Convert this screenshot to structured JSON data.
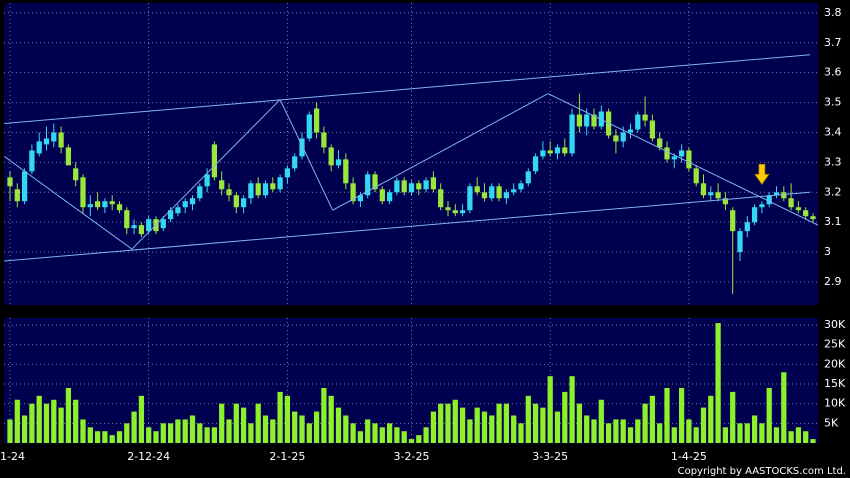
{
  "chart_data": {
    "type": "candlestick",
    "ohlc": [
      [
        3.25,
        3.27,
        3.17,
        3.22
      ],
      [
        3.21,
        3.23,
        3.15,
        3.17
      ],
      [
        3.17,
        3.28,
        3.16,
        3.27
      ],
      [
        3.27,
        3.36,
        3.26,
        3.34
      ],
      [
        3.33,
        3.4,
        3.32,
        3.37
      ],
      [
        3.36,
        3.42,
        3.34,
        3.38
      ],
      [
        3.37,
        3.43,
        3.35,
        3.4
      ],
      [
        3.4,
        3.42,
        3.33,
        3.35
      ],
      [
        3.35,
        3.36,
        3.29,
        3.29
      ],
      [
        3.28,
        3.3,
        3.22,
        3.24
      ],
      [
        3.25,
        3.26,
        3.13,
        3.15
      ],
      [
        3.15,
        3.19,
        3.12,
        3.16
      ],
      [
        3.17,
        3.2,
        3.14,
        3.15
      ],
      [
        3.15,
        3.18,
        3.13,
        3.17
      ],
      [
        3.17,
        3.19,
        3.14,
        3.16
      ],
      [
        3.16,
        3.17,
        3.13,
        3.14
      ],
      [
        3.14,
        3.15,
        3.06,
        3.08
      ],
      [
        3.08,
        3.11,
        3.06,
        3.09
      ],
      [
        3.09,
        3.1,
        3.05,
        3.06
      ],
      [
        3.07,
        3.12,
        3.06,
        3.11
      ],
      [
        3.11,
        3.12,
        3.06,
        3.07
      ],
      [
        3.08,
        3.12,
        3.07,
        3.11
      ],
      [
        3.11,
        3.15,
        3.1,
        3.14
      ],
      [
        3.13,
        3.16,
        3.12,
        3.15
      ],
      [
        3.15,
        3.18,
        3.13,
        3.17
      ],
      [
        3.16,
        3.19,
        3.14,
        3.18
      ],
      [
        3.18,
        3.23,
        3.17,
        3.22
      ],
      [
        3.22,
        3.28,
        3.2,
        3.26
      ],
      [
        3.36,
        3.37,
        3.24,
        3.25
      ],
      [
        3.24,
        3.27,
        3.19,
        3.21
      ],
      [
        3.21,
        3.23,
        3.17,
        3.19
      ],
      [
        3.19,
        3.2,
        3.13,
        3.15
      ],
      [
        3.15,
        3.19,
        3.13,
        3.18
      ],
      [
        3.18,
        3.24,
        3.16,
        3.23
      ],
      [
        3.23,
        3.25,
        3.18,
        3.19
      ],
      [
        3.19,
        3.24,
        3.18,
        3.23
      ],
      [
        3.23,
        3.25,
        3.2,
        3.21
      ],
      [
        3.21,
        3.26,
        3.2,
        3.25
      ],
      [
        3.25,
        3.29,
        3.23,
        3.28
      ],
      [
        3.28,
        3.33,
        3.27,
        3.32
      ],
      [
        3.32,
        3.4,
        3.31,
        3.38
      ],
      [
        3.38,
        3.47,
        3.37,
        3.46
      ],
      [
        3.48,
        3.5,
        3.38,
        3.4
      ],
      [
        3.4,
        3.42,
        3.33,
        3.35
      ],
      [
        3.35,
        3.36,
        3.27,
        3.29
      ],
      [
        3.29,
        3.34,
        3.28,
        3.31
      ],
      [
        3.31,
        3.33,
        3.21,
        3.23
      ],
      [
        3.23,
        3.25,
        3.16,
        3.17
      ],
      [
        3.17,
        3.2,
        3.15,
        3.19
      ],
      [
        3.19,
        3.27,
        3.18,
        3.26
      ],
      [
        3.26,
        3.27,
        3.2,
        3.21
      ],
      [
        3.21,
        3.22,
        3.16,
        3.17
      ],
      [
        3.17,
        3.21,
        3.16,
        3.2
      ],
      [
        3.2,
        3.25,
        3.19,
        3.24
      ],
      [
        3.24,
        3.25,
        3.19,
        3.2
      ],
      [
        3.2,
        3.24,
        3.19,
        3.23
      ],
      [
        3.23,
        3.24,
        3.19,
        3.21
      ],
      [
        3.21,
        3.25,
        3.2,
        3.24
      ],
      [
        3.25,
        3.27,
        3.2,
        3.21
      ],
      [
        3.21,
        3.23,
        3.14,
        3.15
      ],
      [
        3.15,
        3.17,
        3.12,
        3.14
      ],
      [
        3.14,
        3.16,
        3.12,
        3.13
      ],
      [
        3.13,
        3.16,
        3.12,
        3.14
      ],
      [
        3.14,
        3.23,
        3.13,
        3.22
      ],
      [
        3.22,
        3.25,
        3.19,
        3.2
      ],
      [
        3.2,
        3.23,
        3.17,
        3.18
      ],
      [
        3.18,
        3.23,
        3.17,
        3.22
      ],
      [
        3.22,
        3.23,
        3.17,
        3.18
      ],
      [
        3.18,
        3.21,
        3.16,
        3.2
      ],
      [
        3.2,
        3.23,
        3.19,
        3.21
      ],
      [
        3.21,
        3.24,
        3.2,
        3.23
      ],
      [
        3.23,
        3.28,
        3.22,
        3.27
      ],
      [
        3.27,
        3.33,
        3.26,
        3.32
      ],
      [
        3.32,
        3.37,
        3.31,
        3.34
      ],
      [
        3.34,
        3.37,
        3.32,
        3.33
      ],
      [
        3.33,
        3.36,
        3.31,
        3.35
      ],
      [
        3.35,
        3.38,
        3.32,
        3.33
      ],
      [
        3.33,
        3.48,
        3.32,
        3.46
      ],
      [
        3.46,
        3.53,
        3.4,
        3.42
      ],
      [
        3.42,
        3.48,
        3.39,
        3.46
      ],
      [
        3.46,
        3.48,
        3.41,
        3.42
      ],
      [
        3.42,
        3.49,
        3.41,
        3.47
      ],
      [
        3.47,
        3.48,
        3.38,
        3.39
      ],
      [
        3.39,
        3.41,
        3.33,
        3.37
      ],
      [
        3.37,
        3.42,
        3.35,
        3.4
      ],
      [
        3.4,
        3.43,
        3.38,
        3.41
      ],
      [
        3.41,
        3.47,
        3.4,
        3.46
      ],
      [
        3.46,
        3.52,
        3.42,
        3.44
      ],
      [
        3.44,
        3.46,
        3.37,
        3.38
      ],
      [
        3.38,
        3.4,
        3.34,
        3.35
      ],
      [
        3.35,
        3.37,
        3.3,
        3.31
      ],
      [
        3.31,
        3.33,
        3.28,
        3.32
      ],
      [
        3.32,
        3.36,
        3.3,
        3.34
      ],
      [
        3.34,
        3.35,
        3.27,
        3.28
      ],
      [
        3.28,
        3.29,
        3.22,
        3.23
      ],
      [
        3.23,
        3.26,
        3.18,
        3.19
      ],
      [
        3.19,
        3.22,
        3.17,
        3.2
      ],
      [
        3.2,
        3.23,
        3.17,
        3.18
      ],
      [
        3.18,
        3.2,
        3.14,
        3.16
      ],
      [
        3.14,
        3.15,
        2.86,
        3.07
      ],
      [
        3.0,
        3.08,
        2.97,
        3.07
      ],
      [
        3.07,
        3.12,
        3.05,
        3.1
      ],
      [
        3.1,
        3.16,
        3.09,
        3.15
      ],
      [
        3.15,
        3.17,
        3.13,
        3.16
      ],
      [
        3.16,
        3.2,
        3.15,
        3.19
      ],
      [
        3.19,
        3.22,
        3.18,
        3.2
      ],
      [
        3.2,
        3.22,
        3.17,
        3.18
      ],
      [
        3.18,
        3.23,
        3.14,
        3.15
      ],
      [
        3.15,
        3.17,
        3.13,
        3.14
      ],
      [
        3.14,
        3.15,
        3.11,
        3.12
      ],
      [
        3.12,
        3.13,
        3.1,
        3.11
      ]
    ],
    "volume": [
      6000,
      11000,
      7000,
      10000,
      12000,
      10000,
      11000,
      9000,
      14000,
      11000,
      6000,
      4000,
      3000,
      3000,
      2000,
      3000,
      5000,
      8000,
      12000,
      4000,
      3000,
      5000,
      5000,
      6000,
      6000,
      7000,
      5000,
      4000,
      4000,
      10000,
      6000,
      10000,
      9000,
      5000,
      10000,
      7000,
      6000,
      13000,
      12000,
      8000,
      7000,
      5000,
      8000,
      14000,
      12000,
      9000,
      7000,
      5000,
      3000,
      6000,
      5000,
      4000,
      5000,
      4000,
      3000,
      1000,
      2000,
      4000,
      8000,
      10000,
      10000,
      11000,
      9000,
      6000,
      9000,
      8000,
      7000,
      10000,
      10000,
      7000,
      5000,
      12000,
      10000,
      9000,
      17000,
      8000,
      13000,
      17000,
      10000,
      7000,
      6000,
      11000,
      5000,
      6000,
      6000,
      4000,
      6000,
      10000,
      12000,
      5000,
      14000,
      4000,
      14000,
      6000,
      4000,
      9000,
      12000,
      30500,
      4000,
      13000,
      5000,
      5000,
      7000,
      5000,
      14000,
      4000,
      18000,
      3000,
      4000,
      3000,
      1000
    ],
    "up_color": "#33d8f5",
    "down_color": "#9be63c",
    "volume_color": "#8cf02a",
    "ylim": [
      2.823,
      3.833
    ],
    "yticks": [
      2.9,
      3,
      3.1,
      3.2,
      3.3,
      3.4,
      3.5,
      3.6,
      3.7,
      3.8
    ],
    "volume_ylim": [
      0,
      31800
    ],
    "volume_ticks": [
      {
        "value": 5000,
        "label": "5K"
      },
      {
        "value": 10000,
        "label": "10K"
      },
      {
        "value": 15000,
        "label": "15K"
      },
      {
        "value": 20000,
        "label": "20K"
      },
      {
        "value": 25000,
        "label": "25K"
      },
      {
        "value": 30000,
        "label": "30K"
      }
    ],
    "xticks": [
      {
        "value": 0,
        "label": "1-24"
      },
      {
        "value": 19,
        "label": "2-12-24"
      },
      {
        "value": 38,
        "label": "2-1-25"
      },
      {
        "value": 55,
        "label": "3-2-25"
      },
      {
        "value": 74,
        "label": "3-3-25"
      },
      {
        "value": 93,
        "label": "1-4-25"
      }
    ],
    "grid": true,
    "trendline_color": "#7fb4f2",
    "trendlines": [
      {
        "points": [
          [
            -0.8,
            3.43
          ],
          [
            109.6,
            3.66
          ]
        ]
      },
      {
        "points": [
          [
            -0.8,
            2.97
          ],
          [
            109.6,
            3.2
          ]
        ]
      },
      {
        "points": [
          [
            -0.8,
            3.32
          ],
          [
            16.7,
            3.01
          ],
          [
            37,
            3.51
          ],
          [
            44.2,
            3.14
          ],
          [
            73.7,
            3.53
          ],
          [
            110.7,
            3.09
          ]
        ]
      }
    ],
    "marker": {
      "index": 103,
      "value": 3.22,
      "color": "#ffcc00"
    },
    "copyright": "Copyright by AASTOCKS.com Ltd."
  }
}
